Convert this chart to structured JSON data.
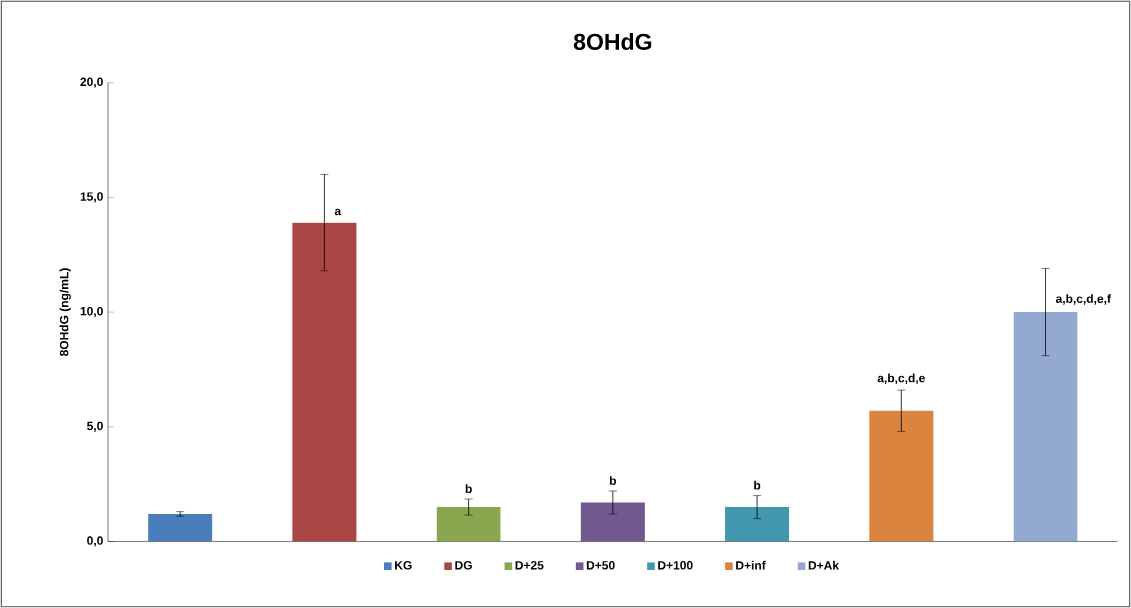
{
  "chart_data": {
    "type": "bar",
    "title": "8OHdG",
    "ylabel": "8OHdG   (ng/mL)",
    "categories": [
      null,
      null,
      null,
      null,
      null,
      null,
      null
    ],
    "series": [
      {
        "name": "KG",
        "color": "#4a7ebb",
        "values": [
          1.2,
          null,
          null,
          null,
          null,
          null,
          null
        ],
        "errors": [
          0.1,
          null,
          null,
          null,
          null,
          null,
          null
        ],
        "value_labels": [
          null,
          null,
          null,
          null,
          null,
          null,
          null
        ]
      },
      {
        "name": "DG",
        "color": "#a94643",
        "values": [
          null,
          13.9,
          null,
          null,
          null,
          null,
          null
        ],
        "errors": [
          null,
          2.1,
          null,
          null,
          null,
          null,
          null
        ],
        "value_labels": [
          null,
          "a",
          null,
          null,
          null,
          null,
          null
        ]
      },
      {
        "name": "D+25",
        "color": "#8aa64e",
        "values": [
          null,
          null,
          1.5,
          null,
          null,
          null,
          null
        ],
        "errors": [
          null,
          null,
          0.35,
          null,
          null,
          null,
          null
        ],
        "value_labels": [
          null,
          null,
          "b",
          null,
          null,
          null,
          null
        ]
      },
      {
        "name": "D+50",
        "color": "#71588f",
        "values": [
          null,
          null,
          null,
          1.7,
          null,
          null,
          null
        ],
        "errors": [
          null,
          null,
          null,
          0.5,
          null,
          null,
          null
        ],
        "value_labels": [
          null,
          null,
          null,
          "b",
          null,
          null,
          null
        ]
      },
      {
        "name": "D+100",
        "color": "#4198af",
        "values": [
          null,
          null,
          null,
          null,
          1.5,
          null,
          null
        ],
        "errors": [
          null,
          null,
          null,
          null,
          0.5,
          null,
          null
        ],
        "value_labels": [
          null,
          null,
          null,
          null,
          "b",
          null,
          null
        ]
      },
      {
        "name": "D+inf",
        "color": "#db8440",
        "values": [
          null,
          null,
          null,
          null,
          null,
          5.7,
          null
        ],
        "errors": [
          null,
          null,
          null,
          null,
          null,
          0.9,
          null
        ],
        "value_labels": [
          null,
          null,
          null,
          null,
          null,
          "a,b,c,d,e",
          null
        ]
      },
      {
        "name": "D+Ak",
        "color": "#93a9d0",
        "values": [
          null,
          null,
          null,
          null,
          null,
          null,
          10.0
        ],
        "errors": [
          null,
          null,
          null,
          null,
          null,
          null,
          1.9
        ],
        "value_labels": [
          null,
          null,
          null,
          null,
          null,
          null,
          "a,b,c,d,e,f"
        ]
      }
    ],
    "ylim": [
      0,
      20
    ],
    "yticks": [
      {
        "value": 0,
        "label": "0,0"
      },
      {
        "value": 5,
        "label": "5,0"
      },
      {
        "value": 10,
        "label": "10,0"
      },
      {
        "value": 15,
        "label": "15,0"
      },
      {
        "value": 20,
        "label": "20,0"
      }
    ],
    "tick_labels": "y",
    "legend": "bottom",
    "grid": false
  }
}
